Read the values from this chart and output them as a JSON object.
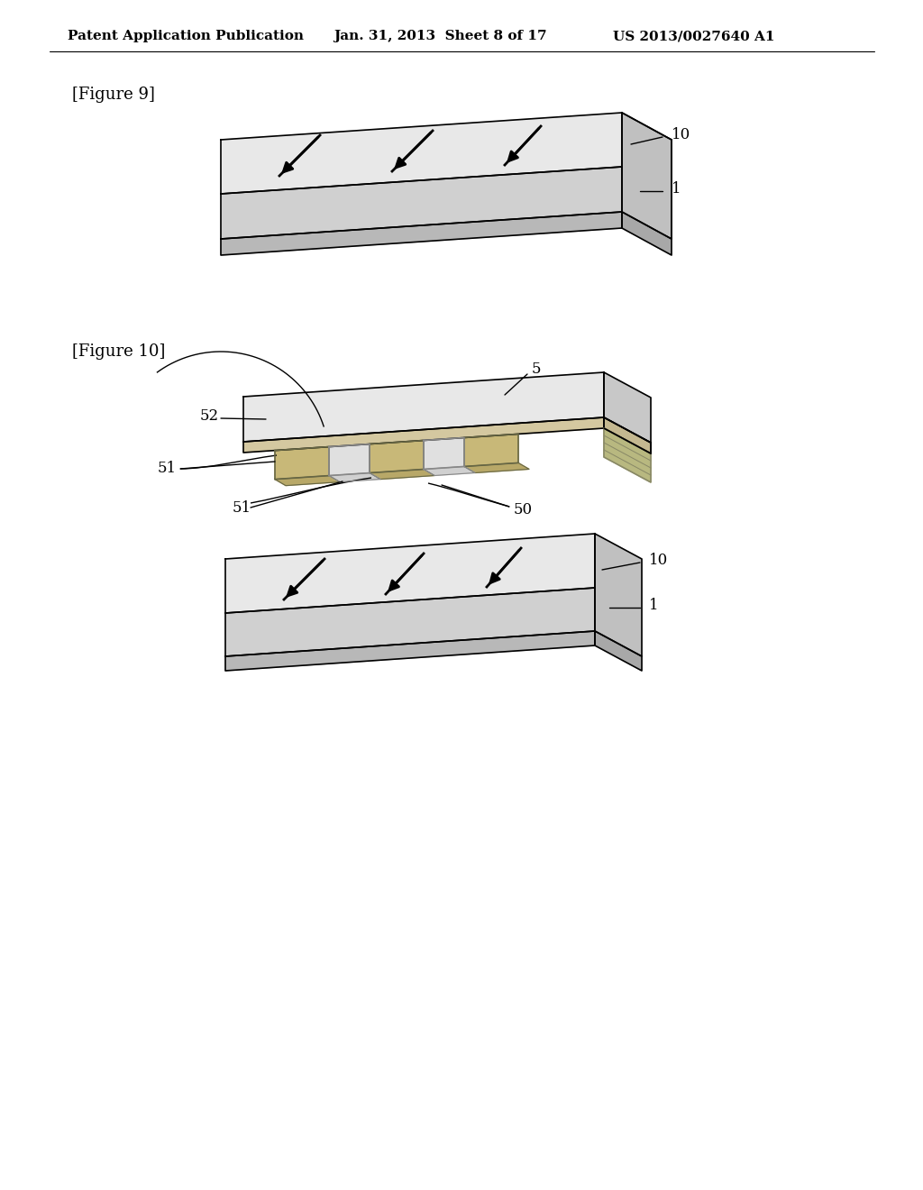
{
  "bg_color": "#ffffff",
  "header_left": "Patent Application Publication",
  "header_mid": "Jan. 31, 2013  Sheet 8 of 17",
  "header_right": "US 2013/0027640 A1",
  "fig9_label": "[Figure 9]",
  "fig10_label": "[Figure 10]",
  "line_color": "#000000",
  "label_color": "#000000"
}
